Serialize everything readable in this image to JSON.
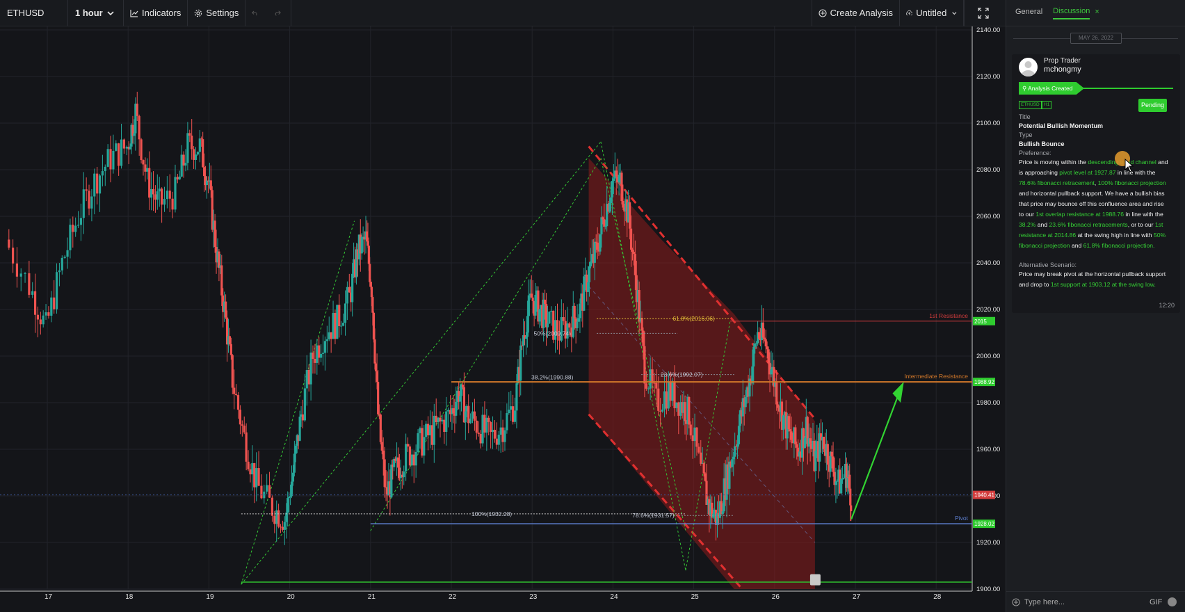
{
  "toolbar": {
    "symbol": "ETHUSD",
    "interval": "1 hour",
    "indicators_label": "Indicators",
    "settings_label": "Settings",
    "create_analysis_label": "Create Analysis",
    "layout_name": "Untitled"
  },
  "chart_data": {
    "type": "candlestick",
    "symbol": "ETHUSD",
    "timeframe": "1 hour",
    "x_ticks": [
      "17",
      "18",
      "19",
      "20",
      "21",
      "22",
      "23",
      "24",
      "25",
      "26",
      "27",
      "28"
    ],
    "y_ticks": [
      "2140.00",
      "2120.00",
      "2100.00",
      "2080.00",
      "2060.00",
      "2040.00",
      "2020.00",
      "2000.00",
      "1980.00",
      "1960.00",
      "1940.00",
      "1920.00",
      "1900.00"
    ],
    "ylim": [
      1900,
      2140
    ],
    "price_series": [
      [
        16.5,
        2050
      ],
      [
        16.8,
        2030
      ],
      [
        17.0,
        2012
      ],
      [
        17.2,
        2040
      ],
      [
        17.4,
        2060
      ],
      [
        17.6,
        2075
      ],
      [
        17.8,
        2085
      ],
      [
        18.0,
        2090
      ],
      [
        18.1,
        2105
      ],
      [
        18.25,
        2075
      ],
      [
        18.4,
        2065
      ],
      [
        18.6,
        2070
      ],
      [
        18.75,
        2090
      ],
      [
        18.9,
        2090
      ],
      [
        19.0,
        2075
      ],
      [
        19.1,
        2045
      ],
      [
        19.2,
        2020
      ],
      [
        19.3,
        1990
      ],
      [
        19.45,
        1965
      ],
      [
        19.6,
        1945
      ],
      [
        19.8,
        1935
      ],
      [
        19.95,
        1930
      ],
      [
        20.05,
        1950
      ],
      [
        20.15,
        1975
      ],
      [
        20.3,
        2000
      ],
      [
        20.45,
        2010
      ],
      [
        20.6,
        2015
      ],
      [
        20.75,
        2025
      ],
      [
        20.85,
        2045
      ],
      [
        20.95,
        2050
      ],
      [
        21.02,
        2030
      ],
      [
        21.1,
        1975
      ],
      [
        21.2,
        1940
      ],
      [
        21.3,
        1950
      ],
      [
        21.4,
        1955
      ],
      [
        21.55,
        1960
      ],
      [
        21.7,
        1965
      ],
      [
        21.85,
        1970
      ],
      [
        22.0,
        1975
      ],
      [
        22.1,
        1985
      ],
      [
        22.2,
        1975
      ],
      [
        22.35,
        1970
      ],
      [
        22.5,
        1965
      ],
      [
        22.65,
        1970
      ],
      [
        22.8,
        1980
      ],
      [
        22.9,
        2010
      ],
      [
        23.0,
        2025
      ],
      [
        23.1,
        2020
      ],
      [
        23.2,
        2015
      ],
      [
        23.35,
        2010
      ],
      [
        23.5,
        2015
      ],
      [
        23.6,
        2020
      ],
      [
        23.7,
        2035
      ],
      [
        23.8,
        2045
      ],
      [
        23.9,
        2060
      ],
      [
        24.0,
        2075
      ],
      [
        24.1,
        2075
      ],
      [
        24.2,
        2060
      ],
      [
        24.3,
        2030
      ],
      [
        24.4,
        1995
      ],
      [
        24.55,
        1980
      ],
      [
        24.7,
        1985
      ],
      [
        24.85,
        1980
      ],
      [
        24.95,
        1975
      ],
      [
        25.1,
        1950
      ],
      [
        25.2,
        1935
      ],
      [
        25.3,
        1930
      ],
      [
        25.4,
        1945
      ],
      [
        25.5,
        1960
      ],
      [
        25.6,
        1975
      ],
      [
        25.7,
        1990
      ],
      [
        25.8,
        2010
      ],
      [
        25.9,
        2005
      ],
      [
        26.0,
        1990
      ],
      [
        26.1,
        1975
      ],
      [
        26.2,
        1965
      ],
      [
        26.3,
        1960
      ],
      [
        26.4,
        1970
      ],
      [
        26.5,
        1955
      ],
      [
        26.6,
        1965
      ],
      [
        26.7,
        1955
      ],
      [
        26.8,
        1945
      ],
      [
        26.9,
        1950
      ],
      [
        26.95,
        1940
      ]
    ],
    "levels": [
      {
        "name": "1st Resistance",
        "value": 2015,
        "color": "#d23c3c",
        "badge": "2015"
      },
      {
        "name": "Intermediate Resistance",
        "value": 1988.92,
        "color": "#d2782a",
        "badge": "1988.92"
      },
      {
        "name": "Pivot",
        "value": 1928.02,
        "color": "#5d7fd0",
        "badge": "1928.02"
      },
      {
        "name": "",
        "value": 1940.41,
        "color": "#c03a3a",
        "badge": "1940.41"
      }
    ],
    "fib_labels": [
      {
        "text": "61.8%(2016.06)",
        "day": 25.0,
        "price": 2016.06
      },
      {
        "text": "50%(2009.74)",
        "day": 23.25,
        "price": 2009.74
      },
      {
        "text": "38.2%(1990.88)",
        "day": 23.25,
        "price": 1990.88
      },
      {
        "text": "23.6%(1992.07)",
        "day": 24.85,
        "price": 1992.07
      },
      {
        "text": "100%(1932.28)",
        "day": 22.5,
        "price": 1932.28
      },
      {
        "text": "78.6%(1931.57)",
        "day": 24.5,
        "price": 1931.57
      }
    ]
  },
  "panel": {
    "tabs": {
      "general": "General",
      "discussion": "Discussion",
      "close": "×"
    },
    "date": "MAY 26, 2022",
    "message": {
      "role": "Prop Trader",
      "user": "mchongmy",
      "banner": "Analysis Created",
      "tag_symbol": "ETHUSD",
      "tag_timeframe": "H1",
      "status": "Pending",
      "title_label": "Title",
      "title": "Potential Bullish Momentum",
      "type_label": "Type",
      "type": "Bullish Bounce",
      "preference_label": "Preference:",
      "preference_parts": [
        {
          "t": "Price is moving within the ",
          "g": false
        },
        {
          "t": "descending trend channel",
          "g": true
        },
        {
          "t": " and is approaching ",
          "g": false
        },
        {
          "t": "pivot level at 1927.87",
          "g": true
        },
        {
          "t": " in line with the ",
          "g": false
        },
        {
          "t": "78.6% fibonacci retracement",
          "g": true
        },
        {
          "t": ", ",
          "g": false
        },
        {
          "t": "100% fibonacci projection",
          "g": true
        },
        {
          "t": " and horizontal pullback support. We have a bullish bias that price may bounce off this confluence area and rise to our ",
          "g": false
        },
        {
          "t": "1st overlap resistance at 1988.76",
          "g": true
        },
        {
          "t": " in line with the ",
          "g": false
        },
        {
          "t": "38.2%",
          "g": true
        },
        {
          "t": " and ",
          "g": false
        },
        {
          "t": "23.6% fibonacci retracements",
          "g": true
        },
        {
          "t": ", or to our ",
          "g": false
        },
        {
          "t": "1st resistance at 2014.86",
          "g": true
        },
        {
          "t": " at the swing high in line with ",
          "g": false
        },
        {
          "t": "50% fibonacci projection",
          "g": true
        },
        {
          "t": " and ",
          "g": false
        },
        {
          "t": "61.8% fibonacci projection.",
          "g": true
        }
      ],
      "alternative_label": "Alternative Scenario:",
      "alternative_parts": [
        {
          "t": "Price may break pivot at the horizontal pullback support and drop to ",
          "g": false
        },
        {
          "t": "1st support at 1903.12 at the swing low.",
          "g": true
        }
      ],
      "time": "12:20"
    },
    "input_placeholder": "Type here...",
    "gif_label": "GIF"
  }
}
